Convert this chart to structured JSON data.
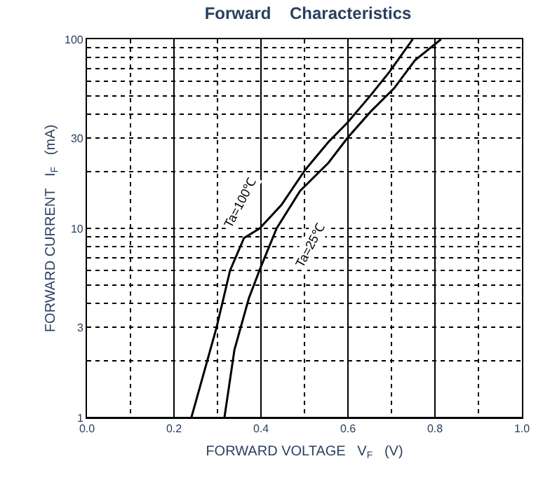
{
  "chart_data": {
    "type": "line",
    "title": "Forward    Characteristics",
    "xlabel": "FORWARD VOLTAGE   V$_{F}$   (V)",
    "ylabel": "FORWARD CURRENT   I$_{F}$   (mA)",
    "series": [
      {
        "name": "Ta=100℃",
        "color": "#000000",
        "x": [
          0.24,
          0.298,
          0.329,
          0.361,
          0.397,
          0.447,
          0.501,
          0.555,
          0.6,
          0.652,
          0.695,
          0.749
        ],
        "values": [
          1,
          3.0,
          6.0,
          8.9,
          10,
          13.3,
          20.3,
          28.6,
          36.5,
          50.5,
          67,
          100
        ]
      },
      {
        "name": "Ta=25℃",
        "color": "#000000",
        "x": [
          0.316,
          0.339,
          0.372,
          0.399,
          0.436,
          0.49,
          0.555,
          0.6,
          0.652,
          0.706,
          0.754,
          0.814
        ],
        "values": [
          1,
          2.28,
          4.26,
          6.2,
          10,
          15.8,
          22.2,
          30.3,
          41.4,
          55,
          77.4,
          100
        ]
      }
    ],
    "log": "y",
    "xlim": [
      0,
      1.0
    ],
    "ylim": [
      1,
      100
    ],
    "xticks": [
      {
        "value": 0,
        "label": "0.0"
      },
      0.2,
      0.4,
      0.6,
      0.8,
      {
        "value": 1.0,
        "label": "1.0"
      }
    ],
    "yticks": [
      1,
      3,
      10,
      30,
      100
    ],
    "grid": true,
    "legend": false,
    "marker": "none",
    "line_style": "solid"
  }
}
